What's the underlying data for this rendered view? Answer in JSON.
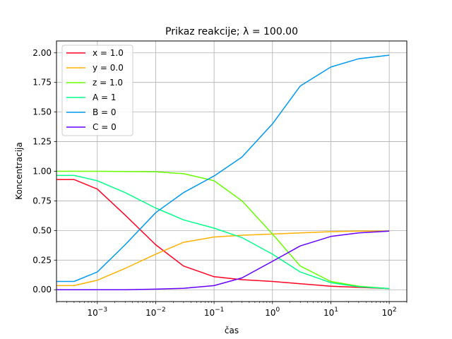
{
  "chart_data": {
    "type": "line",
    "title": "Prikaz reakcije; λ = 100.00",
    "xlabel": "čas",
    "ylabel": "Koncentracija",
    "xscale": "log",
    "xlim": [
      0.0002,
      200
    ],
    "ylim": [
      -0.1,
      2.1
    ],
    "grid": true,
    "legend_position": "top-left",
    "x_ticks": [
      {
        "value": 0.001,
        "base": "10",
        "exp": "−3"
      },
      {
        "value": 0.01,
        "base": "10",
        "exp": "−2"
      },
      {
        "value": 0.1,
        "base": "10",
        "exp": "−1"
      },
      {
        "value": 1,
        "base": "10",
        "exp": "0"
      },
      {
        "value": 10,
        "base": "10",
        "exp": "1"
      },
      {
        "value": 100,
        "base": "10",
        "exp": "2"
      }
    ],
    "y_ticks": [
      {
        "value": 0.0,
        "label": "0.00"
      },
      {
        "value": 0.25,
        "label": "0.25"
      },
      {
        "value": 0.5,
        "label": "0.50"
      },
      {
        "value": 0.75,
        "label": "0.75"
      },
      {
        "value": 1.0,
        "label": "1.00"
      },
      {
        "value": 1.25,
        "label": "1.25"
      },
      {
        "value": 1.5,
        "label": "1.50"
      },
      {
        "value": 1.75,
        "label": "1.75"
      },
      {
        "value": 2.0,
        "label": "2.00"
      }
    ],
    "series": [
      {
        "name": "x = 1.0",
        "color": "#ff0022",
        "x": [
          0.0002,
          0.0004,
          0.001,
          0.003,
          0.01,
          0.03,
          0.1,
          0.3,
          1,
          3,
          10,
          30,
          100
        ],
        "y": [
          0.93,
          0.93,
          0.85,
          0.63,
          0.38,
          0.2,
          0.11,
          0.085,
          0.07,
          0.05,
          0.03,
          0.02,
          0.01
        ]
      },
      {
        "name": "y = 0.0",
        "color": "#ffb000",
        "x": [
          0.0002,
          0.0004,
          0.001,
          0.003,
          0.01,
          0.03,
          0.1,
          0.3,
          1,
          3,
          10,
          30,
          100
        ],
        "y": [
          0.035,
          0.035,
          0.08,
          0.18,
          0.3,
          0.4,
          0.445,
          0.46,
          0.47,
          0.48,
          0.49,
          0.495,
          0.495
        ]
      },
      {
        "name": "z = 1.0",
        "color": "#66ff00",
        "x": [
          0.0002,
          0.001,
          0.01,
          0.03,
          0.1,
          0.3,
          1,
          3,
          10,
          30,
          100
        ],
        "y": [
          1.0,
          1.0,
          0.995,
          0.98,
          0.92,
          0.75,
          0.47,
          0.2,
          0.07,
          0.03,
          0.01
        ]
      },
      {
        "name": "A = 1",
        "color": "#00ff88",
        "x": [
          0.0002,
          0.0004,
          0.001,
          0.003,
          0.01,
          0.03,
          0.1,
          0.3,
          1,
          3,
          10,
          30,
          100
        ],
        "y": [
          0.965,
          0.965,
          0.92,
          0.82,
          0.69,
          0.59,
          0.52,
          0.44,
          0.3,
          0.15,
          0.06,
          0.025,
          0.01
        ]
      },
      {
        "name": "B = 0",
        "color": "#0099ee",
        "x": [
          0.0002,
          0.0004,
          0.001,
          0.003,
          0.01,
          0.03,
          0.1,
          0.3,
          1,
          3,
          10,
          30,
          100
        ],
        "y": [
          0.07,
          0.07,
          0.15,
          0.38,
          0.65,
          0.82,
          0.96,
          1.12,
          1.4,
          1.72,
          1.88,
          1.95,
          1.98
        ]
      },
      {
        "name": "C = 0",
        "color": "#6600ff",
        "x": [
          0.0002,
          0.001,
          0.003,
          0.01,
          0.03,
          0.1,
          0.3,
          1,
          3,
          10,
          30,
          100
        ],
        "y": [
          0.0,
          0.0,
          0.0,
          0.005,
          0.012,
          0.035,
          0.1,
          0.24,
          0.37,
          0.45,
          0.48,
          0.495
        ]
      }
    ]
  }
}
